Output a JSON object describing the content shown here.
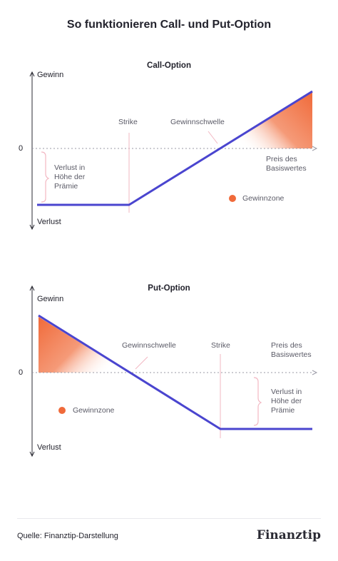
{
  "title": "So funktionieren Call- und Put-Option",
  "call": {
    "title": "Call-Option",
    "y_top": "Gewinn",
    "y_bottom": "Verlust",
    "zero": "0",
    "strike": "Strike",
    "breakeven": "Gewinnschwelle",
    "x_label": "Preis des\nBasiswertes",
    "loss_note": "Verlust in\nHöhe der\nPrämie",
    "zone_legend": "Gewinnzone"
  },
  "put": {
    "title": "Put-Option",
    "y_top": "Gewinn",
    "y_bottom": "Verlust",
    "zero": "0",
    "strike": "Strike",
    "breakeven": "Gewinnschwelle",
    "x_label": "Preis des\nBasiswertes",
    "loss_note": "Verlust in\nHöhe der\nPrämie",
    "zone_legend": "Gewinnzone"
  },
  "colors": {
    "line": "#4a45cf",
    "zone": "#f06a3a",
    "bracket": "#f2b7c2",
    "axis": "#2a2a33"
  },
  "footer": {
    "source": "Quelle: Finanztip-Darstellung",
    "brand": "Finanztip"
  }
}
